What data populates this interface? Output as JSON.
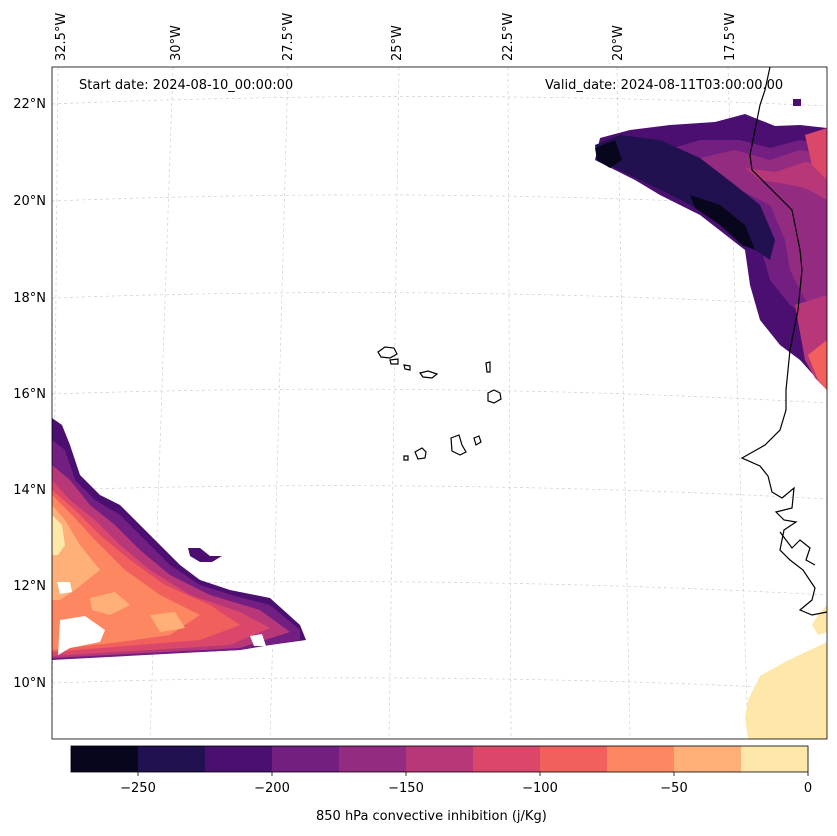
{
  "map": {
    "annotations": {
      "start": "Start date: 2024-08-10_00:00:00",
      "valid": "Valid_date: 2024-08-11T03:00:00.00"
    },
    "lon_labels": [
      "32.5°W",
      "30°W",
      "27.5°W",
      "25°W",
      "22.5°W",
      "20°W",
      "17.5°W"
    ],
    "lat_labels": [
      "22°N",
      "20°N",
      "18°N",
      "16°N",
      "14°N",
      "12°N",
      "10°N"
    ]
  },
  "colorbar": {
    "label": "850 hPa convective inhibition (j/Kg)",
    "ticks": [
      "−250",
      "−200",
      "−150",
      "−100",
      "−50",
      "0"
    ],
    "colors": [
      "#07061c",
      "#221150",
      "#4b0f72",
      "#721f81",
      "#932b80",
      "#b73779",
      "#db476a",
      "#f1605d",
      "#fc8761",
      "#feb078",
      "#fde7a9"
    ]
  }
}
